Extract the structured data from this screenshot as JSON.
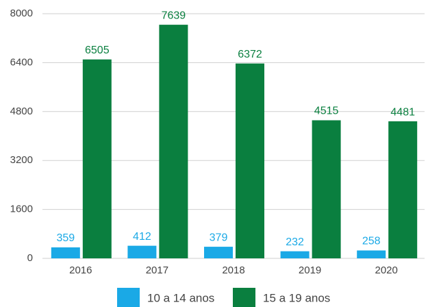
{
  "chart_data": {
    "type": "bar",
    "categories": [
      "2016",
      "2017",
      "2018",
      "2019",
      "2020"
    ],
    "series": [
      {
        "name": "10 a 14 anos",
        "color": "#1aa9e6",
        "values": [
          359,
          412,
          379,
          232,
          258
        ]
      },
      {
        "name": "15 a 19 anos",
        "color": "#0a7f3f",
        "values": [
          6505,
          7639,
          6372,
          4515,
          4481
        ]
      }
    ],
    "ylim": [
      0,
      8000
    ],
    "yticks": [
      0,
      1600,
      3200,
      4800,
      6400,
      8000
    ],
    "grid": true,
    "legend": "bottom"
  }
}
